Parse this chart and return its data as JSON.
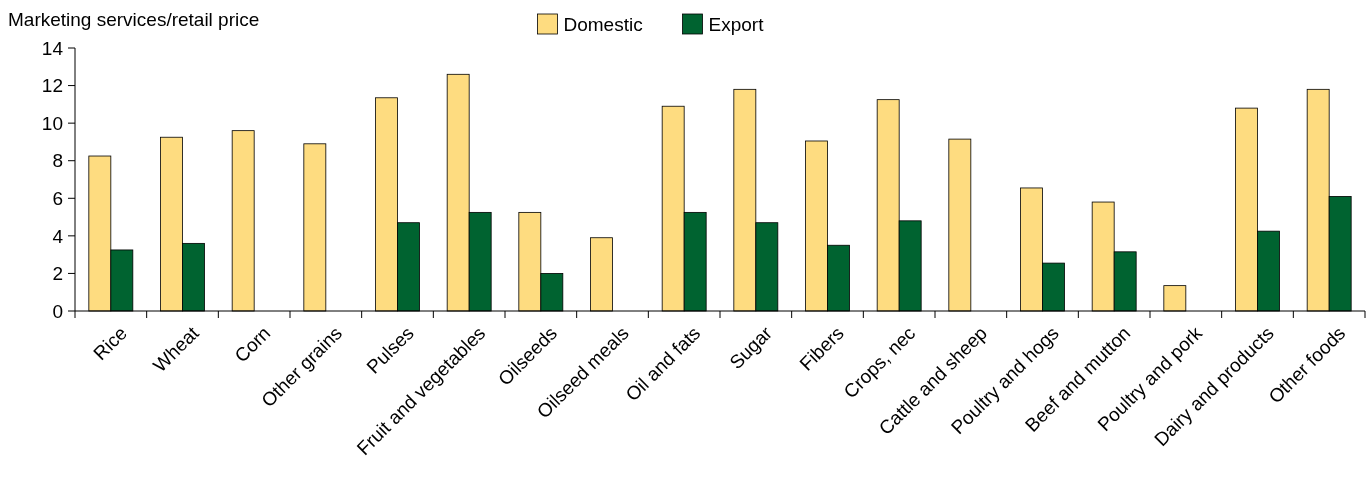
{
  "chart_data": {
    "type": "bar",
    "ylabel": "Marketing services/retail price",
    "categories": [
      "Rice",
      "Wheat",
      "Corn",
      "Other grains",
      "Pulses",
      "Fruit and vegetables",
      "Oilseeds",
      "Oilseed meals",
      "Oil and fats",
      "Sugar",
      "Fibers",
      "Crops, nec",
      "Cattle and sheep",
      "Poultry and hogs",
      "Beef and mutton",
      "Poultry and pork",
      "Dairy and products",
      "Other foods"
    ],
    "series": [
      {
        "name": "Domestic",
        "color": "#fedc80",
        "values": [
          8.25,
          9.25,
          9.6,
          8.9,
          11.35,
          12.6,
          5.25,
          3.9,
          10.9,
          11.8,
          9.05,
          11.25,
          9.15,
          6.55,
          5.8,
          1.35,
          10.8,
          11.8
        ]
      },
      {
        "name": "Export",
        "color": "#006330",
        "values": [
          3.25,
          3.6,
          null,
          null,
          4.7,
          5.25,
          2.0,
          null,
          5.25,
          4.7,
          3.5,
          4.8,
          null,
          2.55,
          3.15,
          null,
          4.25,
          6.1
        ]
      }
    ],
    "ylim": [
      0,
      14
    ],
    "yticks": [
      0,
      2,
      4,
      6,
      8,
      10,
      12,
      14
    ],
    "legend": "top",
    "grid": false
  }
}
